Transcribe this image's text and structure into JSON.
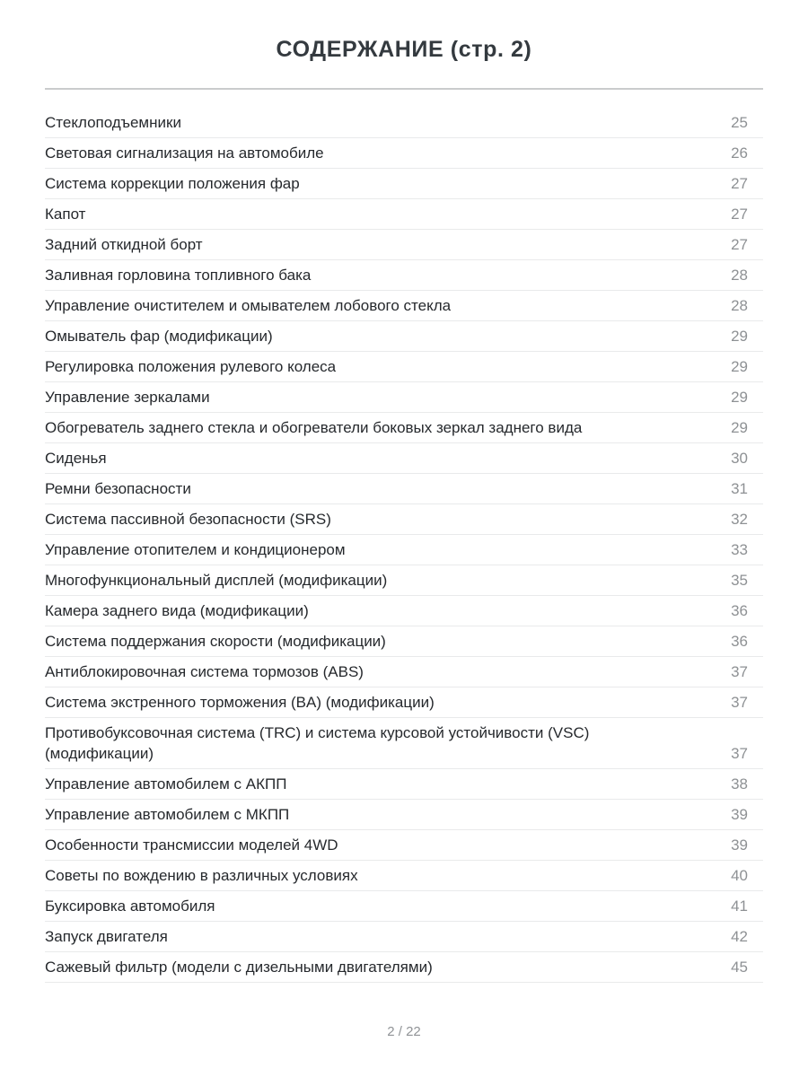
{
  "page": {
    "title": "СОДЕРЖАНИЕ (стр. 2)",
    "footer": "2 / 22"
  },
  "colors": {
    "background": "#ffffff",
    "title_text": "#343a3f",
    "entry_text": "#26292d",
    "page_number_text": "#8e9194",
    "divider_thick": "#cacccd",
    "divider_thin": "#e9eaeb"
  },
  "toc": {
    "entries": [
      {
        "label": "Стеклоподъемники",
        "page": "25"
      },
      {
        "label": "Световая сигнализация на автомобиле",
        "page": "26"
      },
      {
        "label": "Система коррекции положения фар",
        "page": "27"
      },
      {
        "label": "Капот",
        "page": "27"
      },
      {
        "label": "Задний откидной борт",
        "page": "27"
      },
      {
        "label": "Заливная горловина топливного бака",
        "page": "28"
      },
      {
        "label": "Управление очистителем и омывателем лобового стекла",
        "page": "28"
      },
      {
        "label": "Омыватель фар (модификации)",
        "page": "29"
      },
      {
        "label": "Регулировка положения рулевого колеса",
        "page": "29"
      },
      {
        "label": "Управление зеркалами",
        "page": "29"
      },
      {
        "label": "Обогреватель заднего стекла и обогреватели боковых зеркал заднего вида",
        "page": "29"
      },
      {
        "label": "Сиденья",
        "page": "30"
      },
      {
        "label": "Ремни безопасности",
        "page": "31"
      },
      {
        "label": "Система пассивной безопасности (SRS)",
        "page": "32"
      },
      {
        "label": "Управление отопителем и кондиционером",
        "page": "33"
      },
      {
        "label": "Многофункциональный дисплей (модификации)",
        "page": "35"
      },
      {
        "label": "Камера заднего вида (модификации)",
        "page": "36"
      },
      {
        "label": "Система поддержания скорости (модификации)",
        "page": "36"
      },
      {
        "label": "Антиблокировочная система тормозов (ABS)",
        "page": "37"
      },
      {
        "label": "Система экстренного торможения (BA) (модификации)",
        "page": "37"
      },
      {
        "label": "Противобуксовочная система (TRC) и система курсовой устойчивости (VSC) (модификации)",
        "page": "37"
      },
      {
        "label": "Управление автомобилем с АКПП",
        "page": "38"
      },
      {
        "label": "Управление автомобилем с МКПП",
        "page": "39"
      },
      {
        "label": "Особенности трансмиссии моделей 4WD",
        "page": "39"
      },
      {
        "label": "Советы по вождению в различных условиях",
        "page": "40"
      },
      {
        "label": "Буксировка автомобиля",
        "page": "41"
      },
      {
        "label": "Запуск двигателя",
        "page": "42"
      },
      {
        "label": "Сажевый фильтр (модели с дизельными двигателями)",
        "page": "45"
      }
    ]
  }
}
